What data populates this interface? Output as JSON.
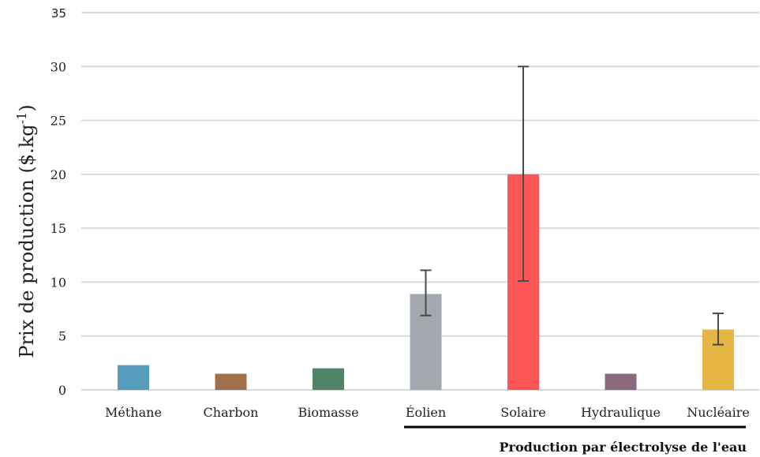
{
  "chart_data": {
    "type": "bar",
    "categories": [
      "Méthane",
      "Charbon",
      "Biomasse",
      "Éolien",
      "Solaire",
      "Hydraulique",
      "Nucléaire"
    ],
    "values": [
      2.3,
      1.5,
      2.0,
      8.9,
      20.0,
      1.5,
      5.6
    ],
    "error_low": [
      null,
      null,
      null,
      6.9,
      10.1,
      null,
      4.2
    ],
    "error_high": [
      null,
      null,
      null,
      11.1,
      30.0,
      null,
      7.1
    ],
    "colors": [
      "#579dbd",
      "#a0704a",
      "#4e8567",
      "#a3a9ae",
      "#ff5555",
      "#8c6a7d",
      "#e6b645"
    ],
    "ylabel": "Prix de production ($.kg-1)",
    "ylabel_main": "Prix de production ($.kg",
    "ylabel_sup": "-1",
    "ylabel_close": ")",
    "ylim": [
      0,
      35
    ],
    "yticks": [
      "0",
      "5",
      "10",
      "15",
      "20",
      "25",
      "30",
      "35"
    ],
    "grid": true,
    "group_annotation": {
      "label": "Production par électrolyse de l'eau",
      "categories": [
        "Éolien",
        "Solaire",
        "Hydraulique",
        "Nucléaire"
      ]
    }
  }
}
